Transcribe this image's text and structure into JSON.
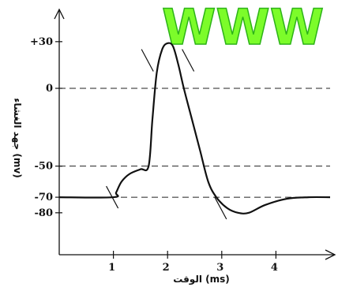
{
  "watermark": {
    "text": "WWW",
    "color": "#7cfc2a"
  },
  "chart_data": {
    "type": "line",
    "title": "",
    "xlabel": "الوقت (ms)",
    "ylabel": "جهد الغشاء (mv)",
    "x_ticks": [
      1,
      2,
      3,
      4
    ],
    "y_ticks": [
      {
        "value": 30,
        "label": "+30"
      },
      {
        "value": 0,
        "label": "0"
      },
      {
        "value": -50,
        "label": "-50"
      },
      {
        "value": -70,
        "label": "-70"
      },
      {
        "value": -80,
        "label": "-80"
      }
    ],
    "reference_lines": [
      0,
      -50,
      -70
    ],
    "xlim": [
      0,
      5
    ],
    "ylim": [
      -110,
      40
    ],
    "series": [
      {
        "color": "#111111",
        "points": [
          [
            0,
            -70
          ],
          [
            1,
            -70
          ],
          [
            1.05,
            -67
          ],
          [
            1.15,
            -60
          ],
          [
            1.3,
            -55
          ],
          [
            1.5,
            -52
          ],
          [
            1.65,
            -50
          ],
          [
            1.72,
            -20
          ],
          [
            1.8,
            10
          ],
          [
            1.9,
            25
          ],
          [
            2.0,
            29
          ],
          [
            2.1,
            27
          ],
          [
            2.2,
            15
          ],
          [
            2.3,
            0
          ],
          [
            2.45,
            -20
          ],
          [
            2.6,
            -40
          ],
          [
            2.75,
            -60
          ],
          [
            2.9,
            -70
          ],
          [
            3.1,
            -77
          ],
          [
            3.3,
            -80
          ],
          [
            3.5,
            -80
          ],
          [
            3.8,
            -75
          ],
          [
            4.2,
            -71
          ],
          [
            4.6,
            -70
          ],
          [
            5,
            -70
          ]
        ]
      }
    ],
    "stimulus_marks": [
      {
        "x": 1.0,
        "y": -70
      },
      {
        "x": 1.65,
        "y": 18
      },
      {
        "x": 2.4,
        "y": 18
      },
      {
        "x": 3.0,
        "y": -77
      }
    ]
  }
}
